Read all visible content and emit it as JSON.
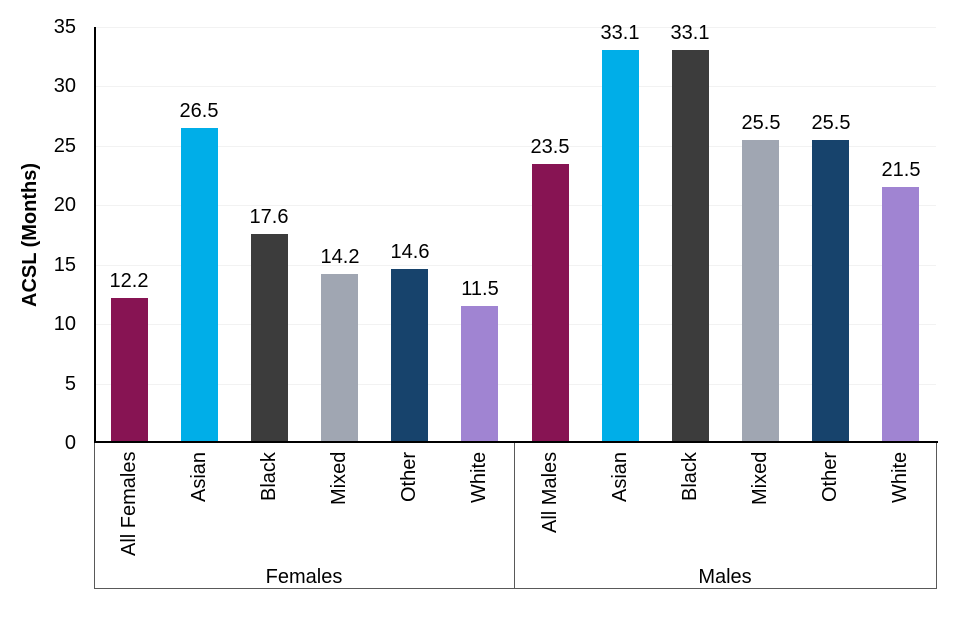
{
  "chart_data": {
    "type": "bar",
    "title": "",
    "ylabel": "ACSL (Months)",
    "xlabel": "",
    "ylim": [
      0,
      35
    ],
    "yticks": [
      0,
      5,
      10,
      15,
      20,
      25,
      30,
      35
    ],
    "grid": true,
    "legend_position": "none",
    "value_label_decimals": 1,
    "groups": [
      {
        "label": "Females",
        "categories": [
          "All Females",
          "Asian",
          "Black",
          "Mixed",
          "Other",
          "White"
        ],
        "values": [
          12.2,
          26.5,
          17.6,
          14.2,
          14.6,
          11.5
        ]
      },
      {
        "label": "Males",
        "categories": [
          "All Males",
          "Asian",
          "Black",
          "Mixed",
          "Other",
          "White"
        ],
        "values": [
          23.5,
          33.1,
          33.1,
          25.5,
          25.5,
          21.5
        ]
      }
    ],
    "bar_colors": [
      "#871453",
      "#00AEE8",
      "#3C3C3C",
      "#A0A6B2",
      "#17436C",
      "#A084D2"
    ]
  },
  "colors": {
    "background": "#ffffff",
    "axis": "#000000",
    "bracket": "#595959",
    "gridline": "#f2f2f2",
    "text": "#000000"
  }
}
